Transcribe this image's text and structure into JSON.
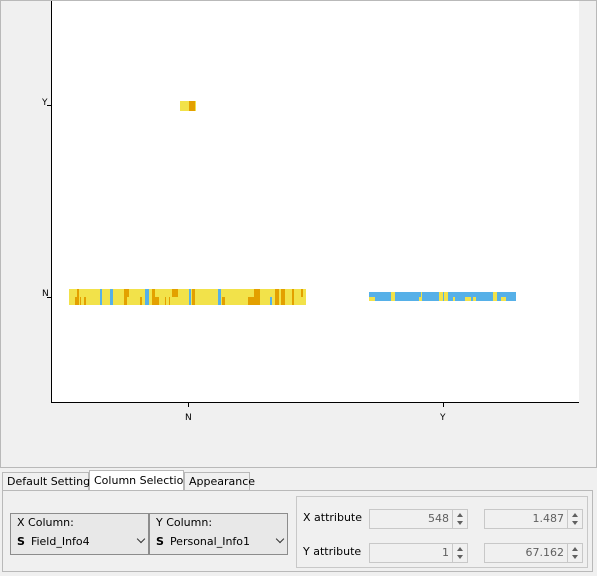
{
  "chart_data": {
    "type": "scatter",
    "title": "",
    "xlabel": "",
    "ylabel": "",
    "x_categories": [
      "N",
      "Y"
    ],
    "y_categories": [
      "N",
      "Y"
    ],
    "colors": {
      "gold": "#e3a000",
      "yellow": "#f2e24a",
      "blue": "#56b0e8"
    },
    "points": [
      {
        "x": "N",
        "y": "N",
        "density": "dense",
        "colors": [
          "gold",
          "yellow",
          "blue"
        ]
      },
      {
        "x": "N",
        "y": "Y",
        "density": "few",
        "colors": [
          "gold",
          "yellow"
        ]
      },
      {
        "x": "Y",
        "y": "N",
        "density": "medium",
        "colors": [
          "yellow",
          "blue"
        ]
      }
    ]
  },
  "tabs": [
    "Default Settings",
    "Column Selection",
    "Appearance"
  ],
  "active_tab": "Column Selection",
  "x_column": {
    "title": "X Column:",
    "type": "S",
    "value": "Field_Info4"
  },
  "y_column": {
    "title": "Y Column:",
    "type": "S",
    "value": "Personal_Info1"
  },
  "x_attribute": {
    "label": "X attribute",
    "value1": "548",
    "value2": "1.487"
  },
  "y_attribute": {
    "label": "Y attribute",
    "value1": "1",
    "value2": "67.162"
  }
}
